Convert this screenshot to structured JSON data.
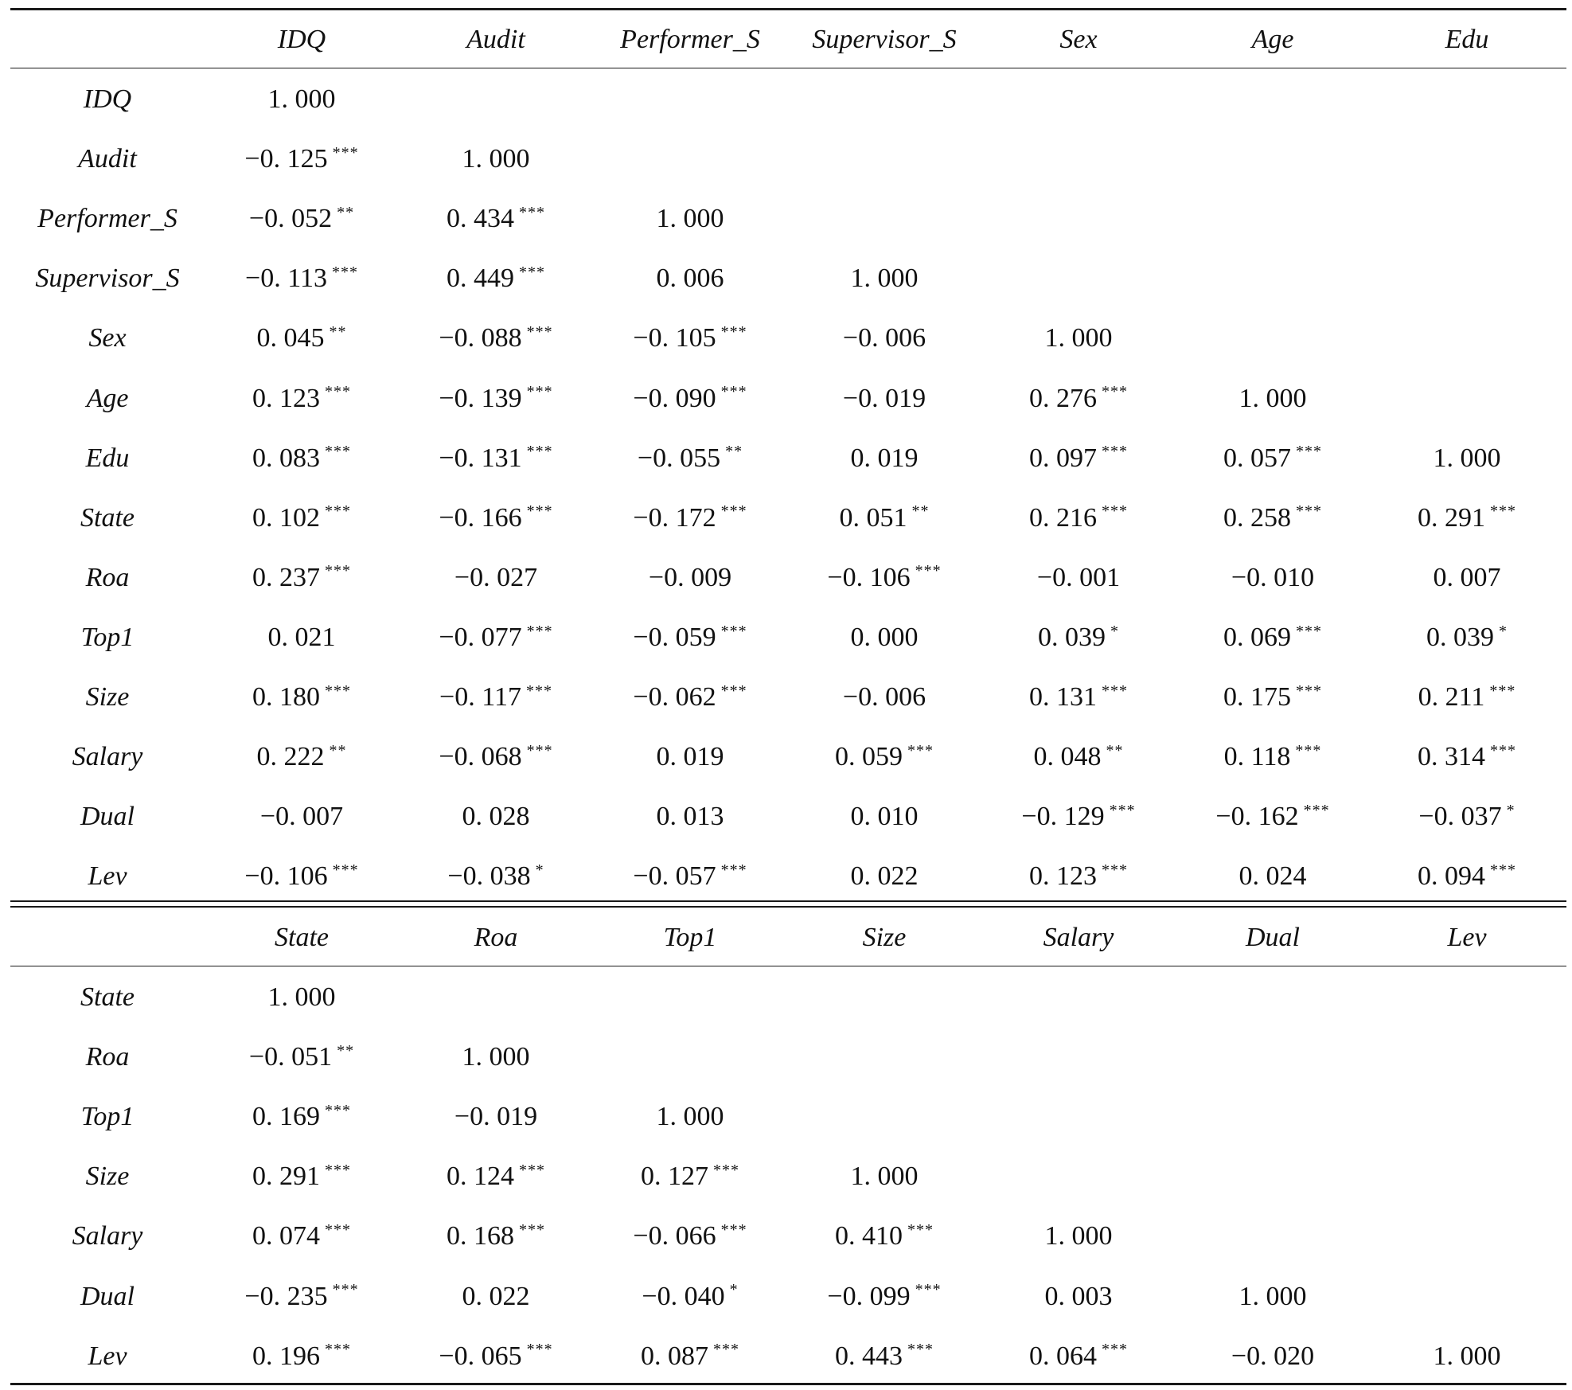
{
  "panel1": {
    "columns": [
      "IDQ",
      "Audit",
      "Performer_S",
      "Supervisor_S",
      "Sex",
      "Age",
      "Edu"
    ],
    "rows": [
      {
        "label": "IDQ",
        "cells": [
          {
            "v": "1. 000",
            "s": ""
          }
        ]
      },
      {
        "label": "Audit",
        "cells": [
          {
            "v": "−0. 125",
            "s": "***"
          },
          {
            "v": "1. 000",
            "s": ""
          }
        ]
      },
      {
        "label": "Performer_S",
        "cells": [
          {
            "v": "−0. 052",
            "s": "**"
          },
          {
            "v": "0. 434",
            "s": "***"
          },
          {
            "v": "1. 000",
            "s": ""
          }
        ]
      },
      {
        "label": "Supervisor_S",
        "cells": [
          {
            "v": "−0. 113",
            "s": "***"
          },
          {
            "v": "0. 449",
            "s": "***"
          },
          {
            "v": "0. 006",
            "s": ""
          },
          {
            "v": "1. 000",
            "s": ""
          }
        ]
      },
      {
        "label": "Sex",
        "cells": [
          {
            "v": "0. 045",
            "s": "**"
          },
          {
            "v": "−0. 088",
            "s": "***"
          },
          {
            "v": "−0. 105",
            "s": "***"
          },
          {
            "v": "−0. 006",
            "s": ""
          },
          {
            "v": "1. 000",
            "s": ""
          }
        ]
      },
      {
        "label": "Age",
        "cells": [
          {
            "v": "0. 123",
            "s": "***"
          },
          {
            "v": "−0. 139",
            "s": "***"
          },
          {
            "v": "−0. 090",
            "s": "***"
          },
          {
            "v": "−0. 019",
            "s": ""
          },
          {
            "v": "0. 276",
            "s": "***"
          },
          {
            "v": "1. 000",
            "s": ""
          }
        ]
      },
      {
        "label": "Edu",
        "cells": [
          {
            "v": "0. 083",
            "s": "***"
          },
          {
            "v": "−0. 131",
            "s": "***"
          },
          {
            "v": "−0. 055",
            "s": "**"
          },
          {
            "v": "0. 019",
            "s": ""
          },
          {
            "v": "0. 097",
            "s": "***"
          },
          {
            "v": "0. 057",
            "s": "***"
          },
          {
            "v": "1. 000",
            "s": ""
          }
        ]
      },
      {
        "label": "State",
        "cells": [
          {
            "v": "0. 102",
            "s": "***"
          },
          {
            "v": "−0. 166",
            "s": "***"
          },
          {
            "v": "−0. 172",
            "s": "***"
          },
          {
            "v": "0. 051",
            "s": "**"
          },
          {
            "v": "0. 216",
            "s": "***"
          },
          {
            "v": "0. 258",
            "s": "***"
          },
          {
            "v": "0. 291",
            "s": "***"
          }
        ]
      },
      {
        "label": "Roa",
        "cells": [
          {
            "v": "0. 237",
            "s": "***"
          },
          {
            "v": "−0. 027",
            "s": ""
          },
          {
            "v": "−0. 009",
            "s": ""
          },
          {
            "v": "−0. 106",
            "s": "***"
          },
          {
            "v": "−0. 001",
            "s": ""
          },
          {
            "v": "−0. 010",
            "s": ""
          },
          {
            "v": "0. 007",
            "s": ""
          }
        ]
      },
      {
        "label": "Top1",
        "cells": [
          {
            "v": "0. 021",
            "s": ""
          },
          {
            "v": "−0. 077",
            "s": "***"
          },
          {
            "v": "−0. 059",
            "s": "***"
          },
          {
            "v": "0. 000",
            "s": ""
          },
          {
            "v": "0. 039",
            "s": "*"
          },
          {
            "v": "0. 069",
            "s": "***"
          },
          {
            "v": "0. 039",
            "s": "*"
          }
        ]
      },
      {
        "label": "Size",
        "cells": [
          {
            "v": "0. 180",
            "s": "***"
          },
          {
            "v": "−0. 117",
            "s": "***"
          },
          {
            "v": "−0. 062",
            "s": "***"
          },
          {
            "v": "−0. 006",
            "s": ""
          },
          {
            "v": "0. 131",
            "s": "***"
          },
          {
            "v": "0. 175",
            "s": "***"
          },
          {
            "v": "0. 211",
            "s": "***"
          }
        ]
      },
      {
        "label": "Salary",
        "cells": [
          {
            "v": "0. 222",
            "s": "**"
          },
          {
            "v": "−0. 068",
            "s": "***"
          },
          {
            "v": "0. 019",
            "s": ""
          },
          {
            "v": "0. 059",
            "s": "***"
          },
          {
            "v": "0. 048",
            "s": "**"
          },
          {
            "v": "0. 118",
            "s": "***"
          },
          {
            "v": "0. 314",
            "s": "***"
          }
        ]
      },
      {
        "label": "Dual",
        "cells": [
          {
            "v": "−0. 007",
            "s": ""
          },
          {
            "v": "0. 028",
            "s": ""
          },
          {
            "v": "0. 013",
            "s": ""
          },
          {
            "v": "0. 010",
            "s": ""
          },
          {
            "v": "−0. 129",
            "s": "***"
          },
          {
            "v": "−0. 162",
            "s": "***"
          },
          {
            "v": "−0. 037",
            "s": "*"
          }
        ]
      },
      {
        "label": "Lev",
        "cells": [
          {
            "v": "−0. 106",
            "s": "***"
          },
          {
            "v": "−0. 038",
            "s": "*"
          },
          {
            "v": "−0. 057",
            "s": "***"
          },
          {
            "v": "0. 022",
            "s": ""
          },
          {
            "v": "0. 123",
            "s": "***"
          },
          {
            "v": "0. 024",
            "s": ""
          },
          {
            "v": "0. 094",
            "s": "***"
          }
        ]
      }
    ]
  },
  "panel2": {
    "columns": [
      "State",
      "Roa",
      "Top1",
      "Size",
      "Salary",
      "Dual",
      "Lev"
    ],
    "rows": [
      {
        "label": "State",
        "cells": [
          {
            "v": "1. 000",
            "s": ""
          }
        ]
      },
      {
        "label": "Roa",
        "cells": [
          {
            "v": "−0. 051",
            "s": "**"
          },
          {
            "v": "1. 000",
            "s": ""
          }
        ]
      },
      {
        "label": "Top1",
        "cells": [
          {
            "v": "0. 169",
            "s": "***"
          },
          {
            "v": "−0. 019",
            "s": ""
          },
          {
            "v": "1. 000",
            "s": ""
          }
        ]
      },
      {
        "label": "Size",
        "cells": [
          {
            "v": "0. 291",
            "s": "***"
          },
          {
            "v": "0. 124",
            "s": "***"
          },
          {
            "v": "0. 127",
            "s": "***"
          },
          {
            "v": "1. 000",
            "s": ""
          }
        ]
      },
      {
        "label": "Salary",
        "cells": [
          {
            "v": "0. 074",
            "s": "***"
          },
          {
            "v": "0. 168",
            "s": "***"
          },
          {
            "v": "−0. 066",
            "s": "***"
          },
          {
            "v": "0. 410",
            "s": "***"
          },
          {
            "v": "1. 000",
            "s": ""
          }
        ]
      },
      {
        "label": "Dual",
        "cells": [
          {
            "v": "−0. 235",
            "s": "***"
          },
          {
            "v": "0. 022",
            "s": ""
          },
          {
            "v": "−0. 040",
            "s": "*"
          },
          {
            "v": "−0. 099",
            "s": "***"
          },
          {
            "v": "0. 003",
            "s": ""
          },
          {
            "v": "1. 000",
            "s": ""
          }
        ]
      },
      {
        "label": "Lev",
        "cells": [
          {
            "v": "0. 196",
            "s": "***"
          },
          {
            "v": "−0. 065",
            "s": "***"
          },
          {
            "v": "0. 087",
            "s": "***"
          },
          {
            "v": "0. 443",
            "s": "***"
          },
          {
            "v": "0. 064",
            "s": "***"
          },
          {
            "v": "−0. 020",
            "s": ""
          },
          {
            "v": "1. 000",
            "s": ""
          }
        ]
      }
    ]
  }
}
